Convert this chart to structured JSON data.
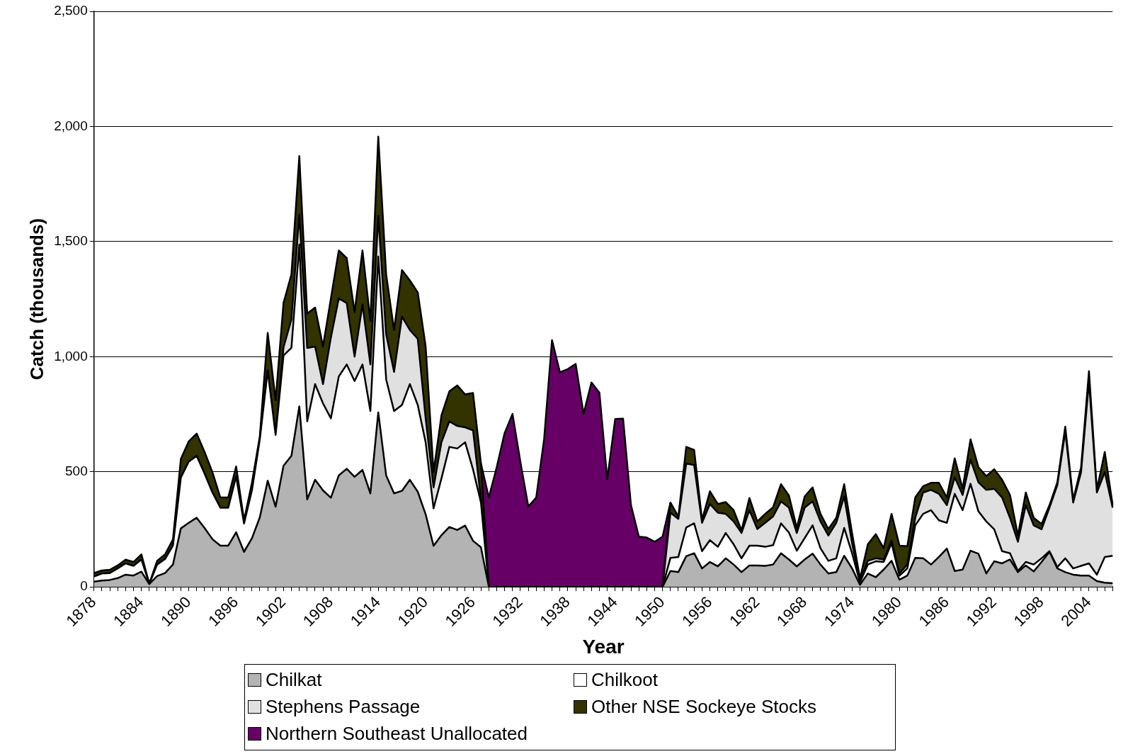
{
  "chart_data": {
    "type": "area",
    "stacked": true,
    "xlabel": "Year",
    "ylabel": "Catch (thousands)",
    "categories": [
      "1878",
      null,
      null,
      null,
      null,
      null,
      "1884",
      null,
      null,
      null,
      null,
      null,
      "1890",
      null,
      null,
      null,
      null,
      null,
      "1896",
      null,
      null,
      null,
      null,
      null,
      "1902",
      null,
      null,
      null,
      null,
      null,
      "1908",
      null,
      null,
      null,
      null,
      null,
      "1914",
      null,
      null,
      null,
      null,
      null,
      "1920",
      null,
      null,
      null,
      null,
      null,
      "1926",
      null,
      null,
      null,
      null,
      null,
      "1932",
      null,
      null,
      null,
      null,
      null,
      "1938",
      null,
      null,
      null,
      null,
      null,
      "1944",
      null,
      null,
      null,
      null,
      null,
      "1950",
      null,
      null,
      null,
      null,
      null,
      "1956",
      null,
      null,
      null,
      null,
      null,
      "1962",
      null,
      null,
      null,
      null,
      null,
      "1968",
      null,
      null,
      null,
      null,
      null,
      "1974",
      null,
      null,
      null,
      null,
      null,
      "1980",
      null,
      null,
      null,
      null,
      null,
      "1986",
      null,
      null,
      null,
      null,
      null,
      "1992",
      null,
      null,
      null,
      null,
      null,
      "1998",
      null,
      null,
      null,
      null,
      null,
      "2004",
      null,
      null,
      null
    ],
    "series": [
      {
        "name": "Chilkat",
        "color": "#b3b3b3",
        "values": [
          23,
          27,
          30,
          38,
          53,
          49,
          66,
          12,
          47,
          60,
          97,
          254,
          278,
          300,
          256,
          207,
          179,
          179,
          237,
          152,
          211,
          302,
          461,
          348,
          526,
          569,
          784,
          380,
          465,
          419,
          387,
          484,
          513,
          478,
          508,
          406,
          758,
          484,
          406,
          417,
          465,
          413,
          315,
          178,
          224,
          260,
          247,
          266,
          200,
          172,
          0,
          0,
          0,
          0,
          0,
          0,
          0,
          0,
          0,
          0,
          0,
          0,
          0,
          0,
          0,
          0,
          0,
          0,
          0,
          0,
          0,
          0,
          0,
          69,
          64,
          133,
          146,
          80,
          108,
          89,
          124,
          97,
          64,
          93,
          93,
          91,
          97,
          146,
          119,
          89,
          119,
          144,
          97,
          58,
          64,
          135,
          80,
          9,
          58,
          42,
          75,
          113,
          31,
          49,
          126,
          124,
          97,
          130,
          166,
          69,
          75,
          157,
          144,
          58,
          111,
          102,
          119,
          64,
          93,
          67,
          108,
          152,
          80,
          64,
          53,
          49,
          49,
          25,
          18,
          16
        ]
      },
      {
        "name": "Chilkoot",
        "color": "#ffffff",
        "values": [
          22,
          31,
          30,
          42,
          49,
          42,
          53,
          1,
          50,
          61,
          82,
          221,
          266,
          269,
          236,
          203,
          165,
          165,
          243,
          123,
          208,
          339,
          479,
          312,
          479,
          469,
          703,
          339,
          416,
          378,
          345,
          430,
          453,
          416,
          458,
          358,
          677,
          417,
          358,
          373,
          416,
          377,
          313,
          163,
          247,
          348,
          354,
          362,
          310,
          195,
          0,
          0,
          0,
          0,
          0,
          0,
          0,
          0,
          0,
          0,
          0,
          0,
          0,
          0,
          0,
          0,
          0,
          0,
          0,
          0,
          0,
          0,
          0,
          57,
          66,
          125,
          130,
          75,
          95,
          85,
          110,
          88,
          60,
          86,
          86,
          83,
          84,
          130,
          117,
          68,
          93,
          123,
          71,
          55,
          60,
          121,
          66,
          11,
          39,
          69,
          33,
          77,
          18,
          31,
          141,
          193,
          236,
          159,
          112,
          335,
          258,
          291,
          184,
          226,
          139,
          53,
          27,
          5,
          15,
          30,
          16,
          3,
          6,
          60,
          27,
          42,
          53,
          28,
          112,
          119
        ]
      },
      {
        "name": "Stephens Passage",
        "color": "#e0e0e0",
        "values": [
          0,
          0,
          0,
          0,
          0,
          0,
          0,
          0,
          0,
          0,
          0,
          0,
          0,
          0,
          0,
          0,
          0,
          0,
          0,
          0,
          0,
          0,
          0,
          0,
          35,
          123,
          130,
          319,
          163,
          84,
          351,
          339,
          267,
          106,
          261,
          202,
          176,
          195,
          170,
          384,
          235,
          287,
          104,
          91,
          157,
          111,
          98,
          65,
          170,
          13,
          0,
          0,
          0,
          0,
          0,
          0,
          0,
          0,
          0,
          0,
          0,
          0,
          0,
          0,
          0,
          0,
          0,
          0,
          0,
          0,
          0,
          0,
          0,
          196,
          165,
          278,
          253,
          123,
          157,
          148,
          83,
          99,
          110,
          154,
          72,
          104,
          125,
          95,
          108,
          77,
          132,
          104,
          116,
          110,
          154,
          137,
          44,
          5,
          16,
          13,
          11,
          11,
          9,
          17,
          33,
          93,
          88,
          115,
          77,
          72,
          66,
          105,
          126,
          137,
          176,
          233,
          154,
          127,
          247,
          170,
          126,
          189,
          357,
          550,
          286,
          407,
          791,
          357,
          368,
          209
        ]
      },
      {
        "name": "Other NSE Sockeye Stocks",
        "color": "#333300",
        "values": [
          15,
          13,
          14,
          13,
          16,
          17,
          22,
          1,
          16,
          20,
          27,
          80,
          88,
          97,
          94,
          88,
          44,
          44,
          43,
          14,
          33,
          13,
          163,
          150,
          193,
          196,
          254,
          149,
          169,
          163,
          170,
          208,
          195,
          194,
          234,
          189,
          345,
          261,
          182,
          202,
          215,
          202,
          312,
          66,
          117,
          130,
          176,
          143,
          162,
          156,
          0,
          0,
          0,
          0,
          0,
          0,
          0,
          0,
          0,
          0,
          0,
          0,
          0,
          0,
          0,
          0,
          0,
          0,
          0,
          0,
          0,
          0,
          0,
          44,
          10,
          72,
          66,
          12,
          55,
          38,
          51,
          49,
          11,
          53,
          33,
          39,
          40,
          75,
          53,
          22,
          49,
          61,
          33,
          28,
          22,
          53,
          44,
          11,
          72,
          105,
          49,
          116,
          121,
          80,
          88,
          27,
          31,
          48,
          33,
          82,
          27,
          88,
          66,
          60,
          85,
          77,
          99,
          27,
          55,
          33,
          23,
          11,
          12,
          22,
          11,
          22,
          44,
          11,
          88,
          11
        ]
      },
      {
        "name": "Northern Southeast Unallocated",
        "color": "#660066",
        "values": [
          null,
          null,
          null,
          null,
          null,
          null,
          null,
          null,
          null,
          null,
          null,
          null,
          null,
          null,
          null,
          null,
          null,
          null,
          null,
          null,
          null,
          null,
          null,
          null,
          null,
          null,
          null,
          null,
          null,
          null,
          null,
          null,
          null,
          null,
          null,
          null,
          null,
          null,
          null,
          null,
          null,
          null,
          null,
          null,
          null,
          null,
          null,
          null,
          null,
          0,
          388,
          520,
          668,
          751,
          542,
          349,
          388,
          641,
          1072,
          932,
          946,
          968,
          751,
          888,
          844,
          467,
          729,
          731,
          355,
          218,
          214,
          196,
          218,
          0,
          null,
          null,
          null,
          null,
          null,
          null,
          null,
          null,
          null,
          null,
          null,
          null,
          null,
          null,
          null,
          null,
          null,
          null,
          null,
          null,
          null,
          null,
          null,
          null,
          null,
          null,
          null,
          null,
          null,
          null,
          null,
          null,
          null,
          null,
          null,
          null,
          null,
          null,
          null,
          null,
          null,
          null,
          null,
          null,
          null,
          null,
          null,
          null,
          null,
          null,
          null,
          null,
          null,
          null,
          null,
          null
        ]
      }
    ],
    "ylim": [
      0,
      2500
    ],
    "yticks": [
      0,
      {
        "value": 500,
        "label": "500"
      },
      {
        "value": 1000,
        "label": "1,000"
      },
      {
        "value": 1500,
        "label": "1,500"
      },
      {
        "value": 2000,
        "label": "2,000"
      },
      {
        "value": 2500,
        "label": "2,500"
      }
    ],
    "grid": "y",
    "legend": "bottom"
  }
}
